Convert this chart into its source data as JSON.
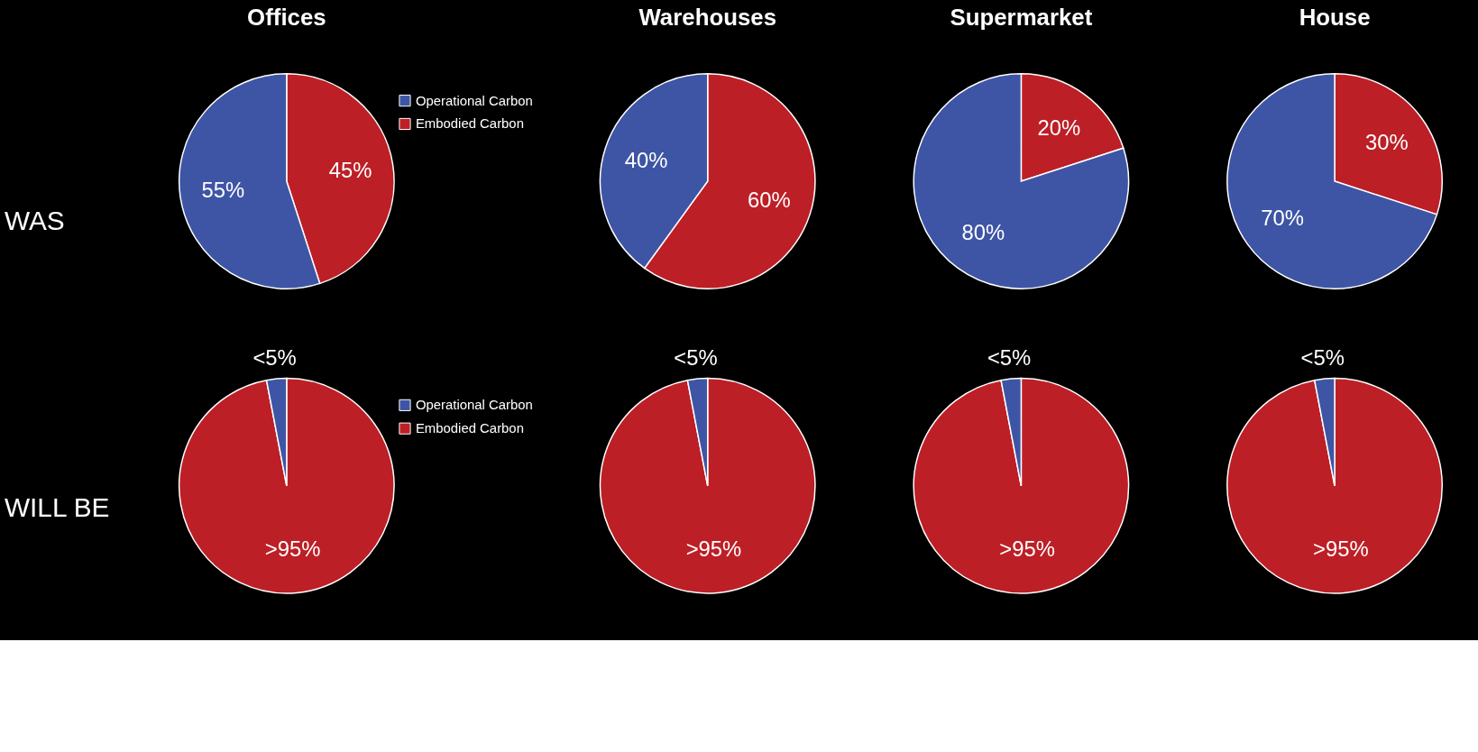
{
  "chart_data": [
    {
      "type": "pie",
      "title": "Offices",
      "legend": "right",
      "annotations": [
        "WAS"
      ],
      "categories": [
        "Embodied Carbon",
        "Operational Carbon"
      ],
      "values": [
        45,
        55
      ],
      "colors": [
        "#bd1f26",
        "#3e55a5"
      ],
      "value_labels": [
        "45%",
        "55%"
      ]
    },
    {
      "type": "pie",
      "title": "Warehouses",
      "categories": [
        null,
        null
      ],
      "values": [
        60,
        40
      ],
      "colors": [
        "#bd1f26",
        "#3e55a5"
      ],
      "value_labels": [
        "60%",
        "40%"
      ]
    },
    {
      "type": "pie",
      "title": "Supermarket",
      "categories": [
        null,
        null
      ],
      "values": [
        20,
        80
      ],
      "colors": [
        "#bd1f26",
        "#3e55a5"
      ],
      "value_labels": [
        "20%",
        "80%"
      ]
    },
    {
      "type": "pie",
      "title": "House",
      "categories": [
        null,
        null
      ],
      "values": [
        30,
        70
      ],
      "colors": [
        "#bd1f26",
        "#3e55a5"
      ],
      "value_labels": [
        "30%",
        "70%"
      ]
    },
    {
      "type": "pie",
      "legend": "right",
      "annotations": [
        "WILL BE"
      ],
      "categories": [
        "Embodied Carbon",
        "Operational Carbon"
      ],
      "values": [
        97,
        3
      ],
      "colors": [
        "#bd1f26",
        "#3e55a5"
      ],
      "value_labels": [
        ">95%",
        "<5%"
      ]
    },
    {
      "type": "pie",
      "categories": [
        null,
        null
      ],
      "values": [
        97,
        3
      ],
      "colors": [
        "#bd1f26",
        "#3e55a5"
      ],
      "value_labels": [
        ">95%",
        "<5%"
      ]
    },
    {
      "type": "pie",
      "categories": [
        null,
        null
      ],
      "values": [
        97,
        3
      ],
      "colors": [
        "#bd1f26",
        "#3e55a5"
      ],
      "value_labels": [
        ">95%",
        "<5%"
      ]
    },
    {
      "type": "pie",
      "categories": [
        null,
        null
      ],
      "values": [
        97,
        3
      ],
      "colors": [
        "#bd1f26",
        "#3e55a5"
      ],
      "value_labels": [
        ">95%",
        "<5%"
      ]
    }
  ]
}
